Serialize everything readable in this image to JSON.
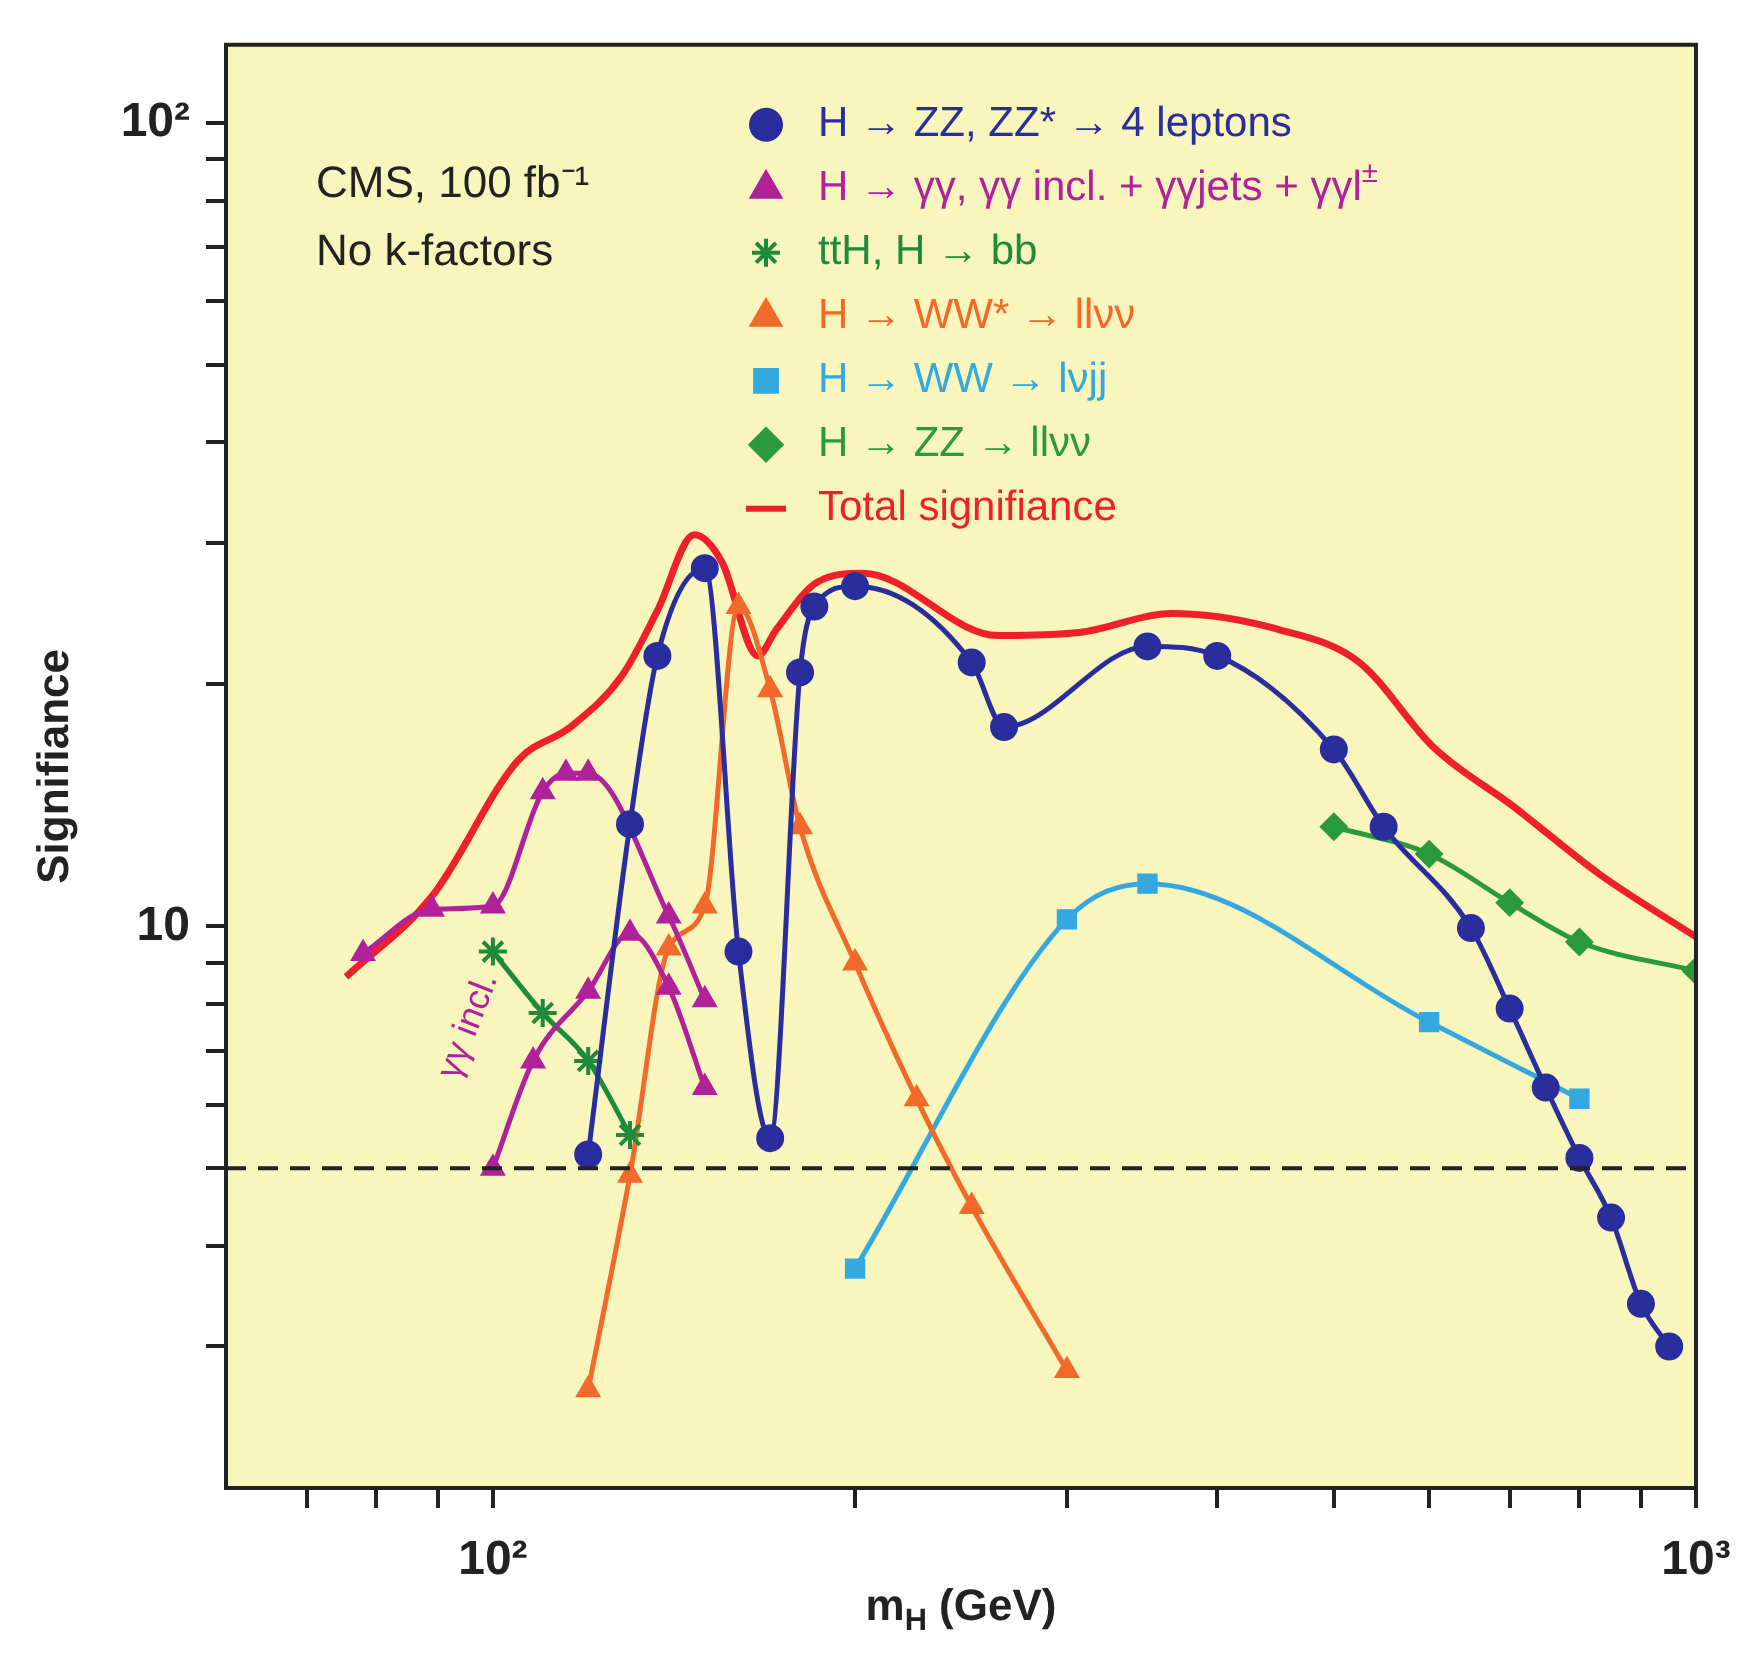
{
  "chart_data": {
    "type": "line",
    "xlabel": "m$_{H}$ (GeV)",
    "ylabel": "Signifiance",
    "log": "xy",
    "legend": "top right",
    "annotations": [
      "CMS, 100 fb⁻¹",
      "No k-factors",
      "γγ incl."
    ],
    "xlim": [
      60,
      1000
    ],
    "ylim": [
      2,
      125
    ],
    "xticks": [
      {
        "value": 70,
        "label": null
      },
      {
        "value": 80,
        "label": null
      },
      {
        "value": 90,
        "label": null
      },
      {
        "value": 100,
        "label": "10²"
      },
      {
        "value": 200,
        "label": null
      },
      {
        "value": 300,
        "label": null
      },
      {
        "value": 400,
        "label": null
      },
      {
        "value": 500,
        "label": null
      },
      {
        "value": 600,
        "label": null
      },
      {
        "value": 700,
        "label": null
      },
      {
        "value": 800,
        "label": null
      },
      {
        "value": 900,
        "label": null
      },
      {
        "value": 1000,
        "label": "10³"
      }
    ],
    "yticks": [
      {
        "value": 3,
        "label": null
      },
      {
        "value": 4,
        "label": null
      },
      {
        "value": 5,
        "label": null
      },
      {
        "value": 6,
        "label": null
      },
      {
        "value": 7,
        "label": null
      },
      {
        "value": 8,
        "label": null
      },
      {
        "value": 9,
        "label": null
      },
      10,
      {
        "value": 20,
        "label": null
      },
      {
        "value": 30,
        "label": null
      },
      {
        "value": 40,
        "label": null
      },
      {
        "value": 50,
        "label": null
      },
      {
        "value": 60,
        "label": null
      },
      {
        "value": 70,
        "label": null
      },
      {
        "value": 80,
        "label": null
      },
      {
        "value": 90,
        "label": null
      },
      {
        "value": 100,
        "label": "10²"
      }
    ],
    "ref_lines": [
      {
        "axis": "y",
        "value": 5,
        "color": "#222222",
        "line_style": "dashed"
      }
    ],
    "series": [
      {
        "name": "H → ZZ, ZZ* → 4 leptons",
        "color": "#2a2d9c",
        "marker": "circle",
        "x": [
          120,
          130,
          137,
          150,
          160,
          170,
          180,
          185,
          200,
          250,
          266,
          350,
          400,
          500,
          550,
          650,
          700,
          750,
          800,
          850,
          900,
          950
        ],
        "values": [
          5.2,
          13.4,
          21.7,
          27.9,
          9.3,
          5.45,
          20.7,
          25,
          26.5,
          21.3,
          17.7,
          22.3,
          21.7,
          16.6,
          13.3,
          9.95,
          7.9,
          6.3,
          5.15,
          4.34,
          3.39,
          3.0
        ]
      },
      {
        "name": "H → γγ, γγ incl. + γγjets + γγl$^{±}$",
        "color": "#b0219a",
        "marker": "triangle",
        "x": [
          78,
          89,
          100,
          110,
          115,
          120,
          140,
          150
        ],
        "values": [
          9.25,
          10.5,
          10.6,
          14.7,
          15.5,
          15.5,
          10.3,
          8.1
        ]
      },
      {
        "color": "#b0219a",
        "marker": "triangle",
        "x": [
          100,
          108,
          120,
          130,
          140,
          150
        ],
        "values": [
          5.0,
          6.8,
          8.3,
          9.8,
          8.4,
          6.3
        ]
      },
      {
        "name": "ttH, H → bb",
        "color": "#1f8a3a",
        "marker": "cross",
        "x": [
          100,
          110,
          120,
          130
        ],
        "values": [
          9.3,
          7.8,
          6.8,
          5.5
        ]
      },
      {
        "name": "H → WW* → llνν",
        "color": "#f26a2a",
        "marker": "triangle",
        "x": [
          120,
          130,
          140,
          150,
          160,
          170,
          180,
          200,
          225,
          250,
          300
        ],
        "values": [
          2.65,
          4.9,
          9.4,
          10.6,
          25,
          19.7,
          13.3,
          9.0,
          6.1,
          4.48,
          2.8
        ]
      },
      {
        "name": "H → WW → lνjj",
        "color": "#35a8e0",
        "marker": "square",
        "x": [
          200,
          300,
          350,
          600,
          800
        ],
        "values": [
          3.75,
          10.2,
          11.3,
          7.6,
          6.1
        ]
      },
      {
        "name": "H → ZZ → llνν",
        "color": "#2a9a3a",
        "marker": "diamond",
        "x": [
          500,
          600,
          700,
          800,
          1000
        ],
        "values": [
          13.3,
          12.3,
          10.7,
          9.56,
          8.8
        ]
      },
      {
        "name": "Total signifiance",
        "color": "#f0202a",
        "marker": "none",
        "x": [
          75.5,
          89,
          105,
          116,
          128,
          137,
          147,
          155,
          166,
          172,
          186,
          203,
          263,
          307,
          367,
          450,
          525,
          605,
          705,
          832,
          1000
        ],
        "values": [
          8.65,
          10.9,
          16.1,
          17.7,
          20.5,
          24.7,
          30.7,
          28.4,
          21.7,
          23.4,
          26.8,
          27.5,
          23.0,
          23.2,
          24.5,
          23.4,
          21.3,
          16.7,
          14.1,
          11.6,
          9.7
        ]
      }
    ]
  }
}
